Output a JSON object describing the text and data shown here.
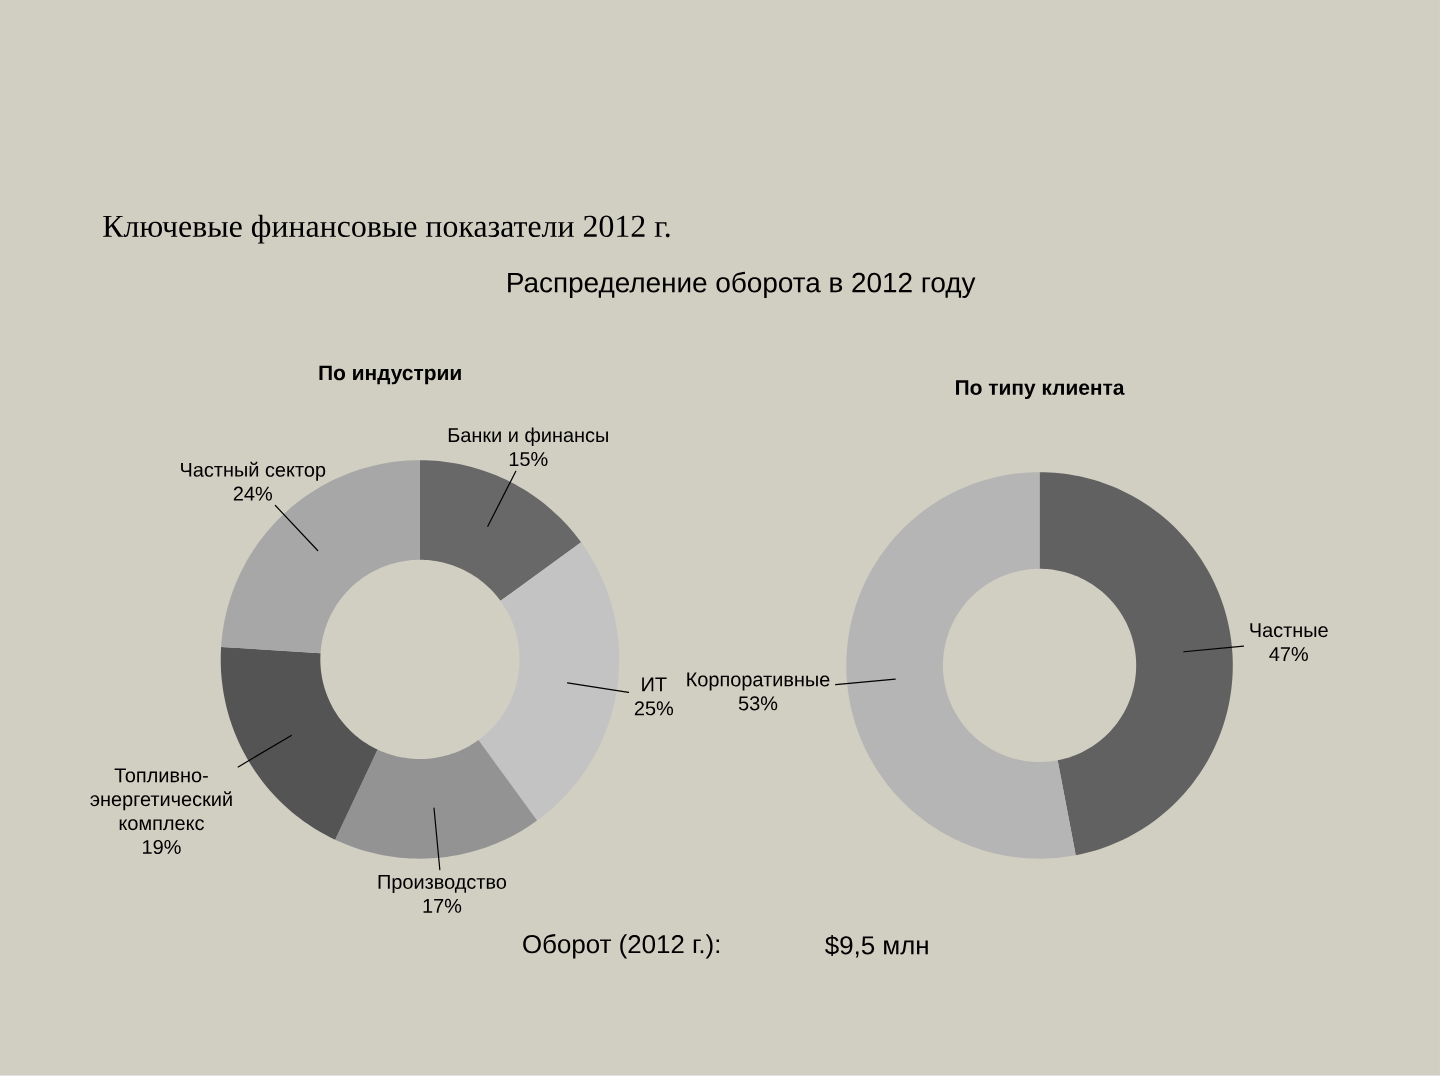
{
  "chart_data": [
    {
      "type": "other",
      "title": "Ключевые финансовые показатели 2012 г.",
      "subtitle": "Распределение оборота в 2012 году",
      "annotations": [
        "Оборот (2012 г.):",
        "$9,5 млн"
      ]
    },
    {
      "type": "donut",
      "title": "По индустрии",
      "categories": [
        "Банки и финансы",
        "ИТ",
        "Производство",
        "Топливно-энергетический комплекс",
        "Частный сектор"
      ],
      "values": [
        15,
        25,
        17,
        19,
        24
      ],
      "value_labels": [
        "15%",
        "25%",
        "17%",
        "19%",
        "24%"
      ],
      "colors": [
        "#686868",
        "#c3c3c3",
        "#939393",
        "#545454",
        "#a7a7a7"
      ]
    },
    {
      "type": "donut",
      "title": "По типу клиента",
      "categories": [
        "Частные",
        "Корпоративные"
      ],
      "values": [
        47,
        53
      ],
      "value_labels": [
        "47%",
        "53%"
      ],
      "colors": [
        "#616161",
        "#b5b5b5"
      ]
    }
  ]
}
